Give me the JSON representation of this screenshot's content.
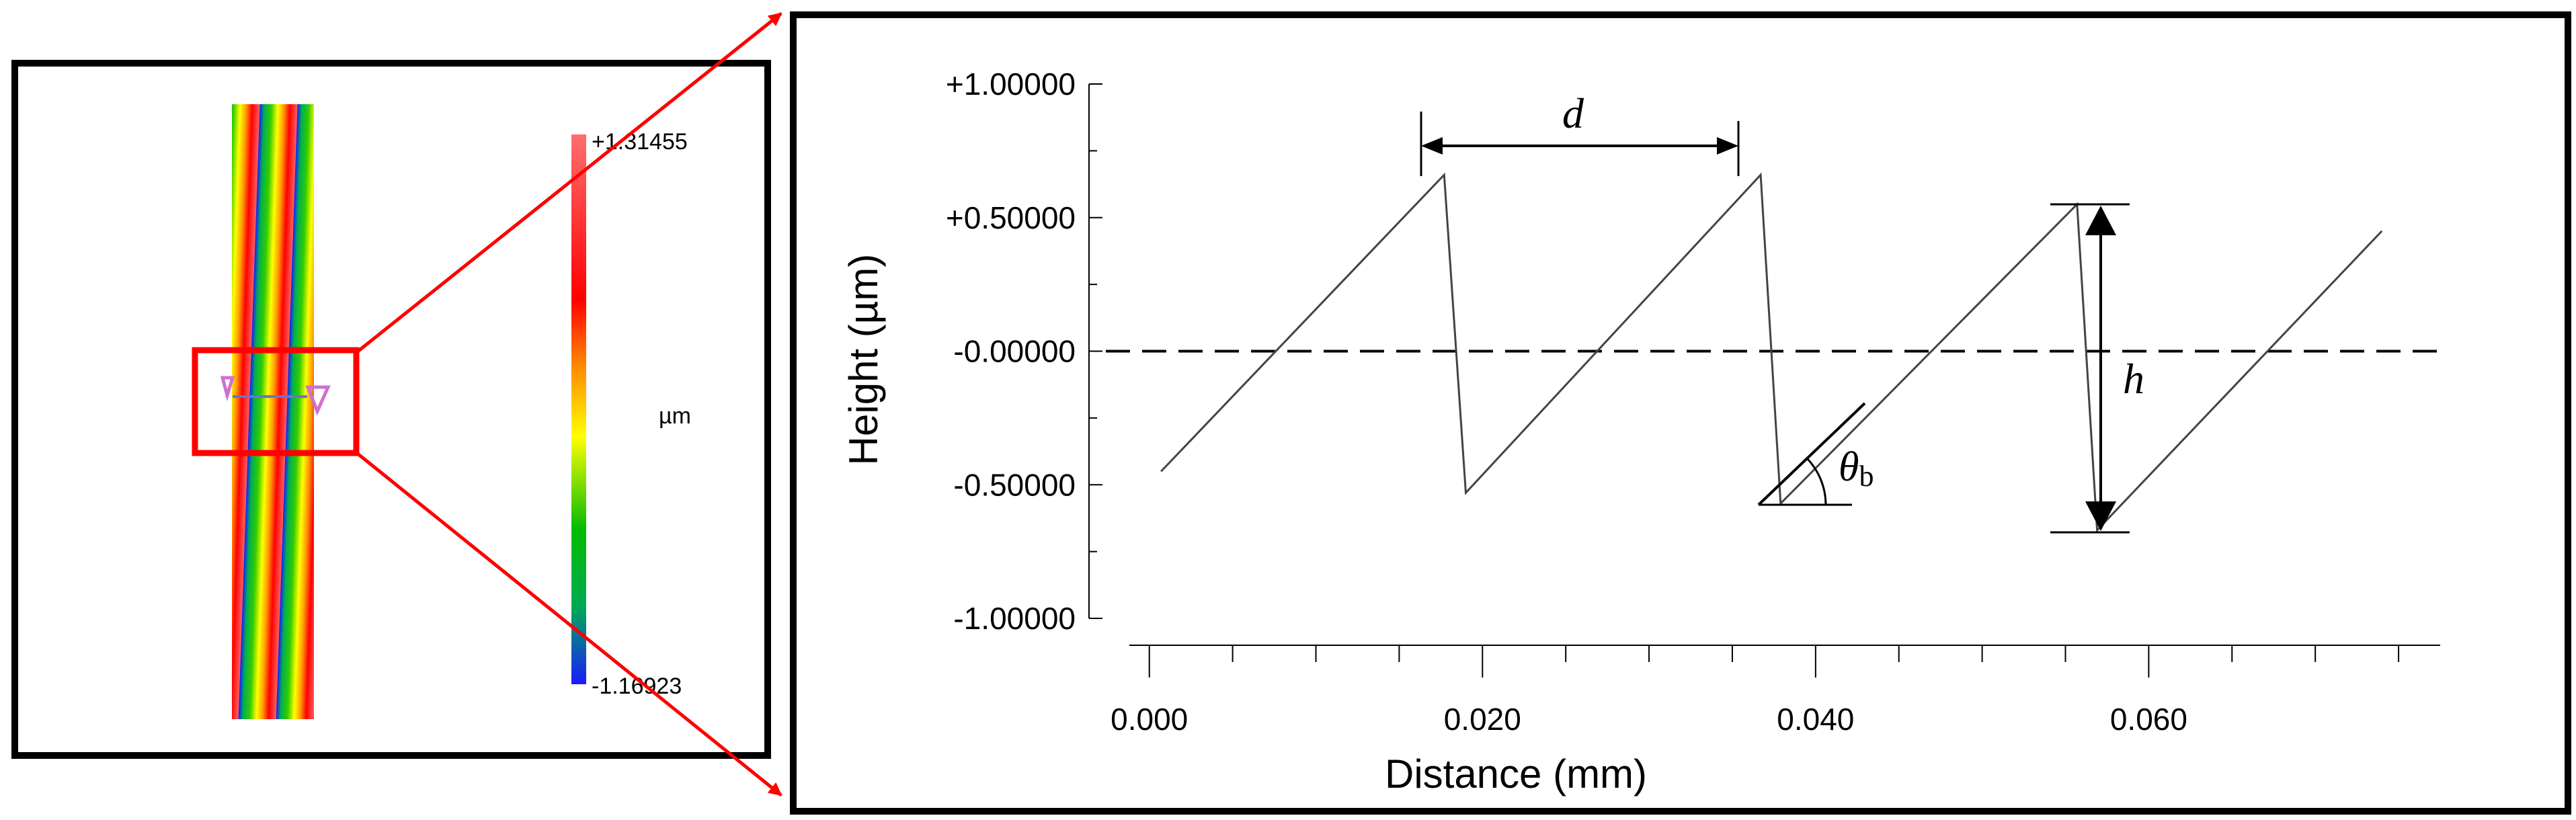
{
  "colorbar": {
    "max_label": "+1.31455",
    "min_label": "-1.16923",
    "unit_label": "µm",
    "max_value": 1.31455,
    "min_value": -1.16923
  },
  "annotations": {
    "period": "d",
    "height": "h",
    "blaze_angle": "θ",
    "blaze_angle_sub": "b"
  },
  "colors": {
    "highlight": "#ff0000",
    "frame": "#000000",
    "line": "#444444"
  },
  "chart_data": {
    "type": "line",
    "title": "",
    "xlabel": "Distance (mm)",
    "ylabel": "Height (µm)",
    "xlim": [
      -0.0012,
      0.0775
    ],
    "ylim": [
      -1.0,
      1.0
    ],
    "xticks": [
      "0.000",
      "0.020",
      "0.040",
      "0.060"
    ],
    "xtick_values": [
      0.0,
      0.02,
      0.04,
      0.06
    ],
    "yticks": [
      "+1.00000",
      "+0.50000",
      "-0.00000",
      "-0.50000",
      "-1.00000"
    ],
    "ytick_values": [
      1.0,
      0.5,
      0.0,
      -0.5,
      -1.0
    ],
    "grid": false,
    "reference_line": {
      "y": 0.0,
      "style": "dashed"
    },
    "series": [
      {
        "x": [
          0.0007,
          0.0177,
          0.019,
          0.0367,
          0.0379,
          0.0557,
          0.0569,
          0.074
        ],
        "y": [
          -0.45,
          0.66,
          -0.53,
          0.66,
          -0.57,
          0.55,
          -0.67,
          0.45
        ]
      }
    ]
  }
}
